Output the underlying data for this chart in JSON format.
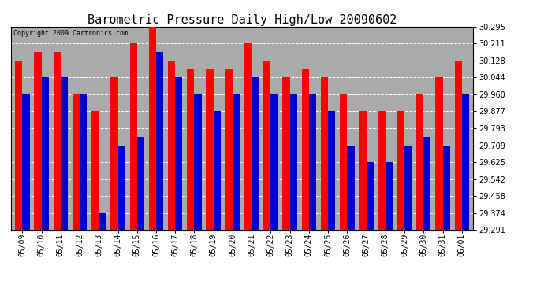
{
  "title": "Barometric Pressure Daily High/Low 20090602",
  "copyright": "Copyright 2009 Cartronics.com",
  "dates": [
    "05/09",
    "05/10",
    "05/11",
    "05/12",
    "05/13",
    "05/14",
    "05/15",
    "05/16",
    "05/17",
    "05/18",
    "05/19",
    "05/20",
    "05/21",
    "05/22",
    "05/23",
    "05/24",
    "05/25",
    "05/26",
    "05/27",
    "05/28",
    "05/29",
    "05/30",
    "05/31",
    "06/01"
  ],
  "highs": [
    30.128,
    30.168,
    30.168,
    29.96,
    29.877,
    30.044,
    30.211,
    30.295,
    30.128,
    30.085,
    30.085,
    30.085,
    30.211,
    30.128,
    30.044,
    30.085,
    30.044,
    29.96,
    29.877,
    29.877,
    29.877,
    29.96,
    30.044,
    30.128
  ],
  "lows": [
    29.96,
    30.044,
    30.044,
    29.96,
    29.374,
    29.709,
    29.75,
    30.17,
    30.044,
    29.96,
    29.877,
    29.96,
    30.044,
    29.96,
    29.96,
    29.96,
    29.877,
    29.709,
    29.625,
    29.625,
    29.709,
    29.75,
    29.709,
    29.96
  ],
  "high_color": "#ff0000",
  "low_color": "#0000cc",
  "background_color": "#ffffff",
  "plot_bg_color": "#aaaaaa",
  "ymin": 29.291,
  "ymax": 30.295,
  "yticks": [
    29.291,
    29.374,
    29.458,
    29.542,
    29.625,
    29.709,
    29.793,
    29.877,
    29.96,
    30.044,
    30.128,
    30.211,
    30.295
  ],
  "bar_width": 0.38,
  "title_fontsize": 11,
  "tick_fontsize": 7,
  "copyright_fontsize": 6
}
